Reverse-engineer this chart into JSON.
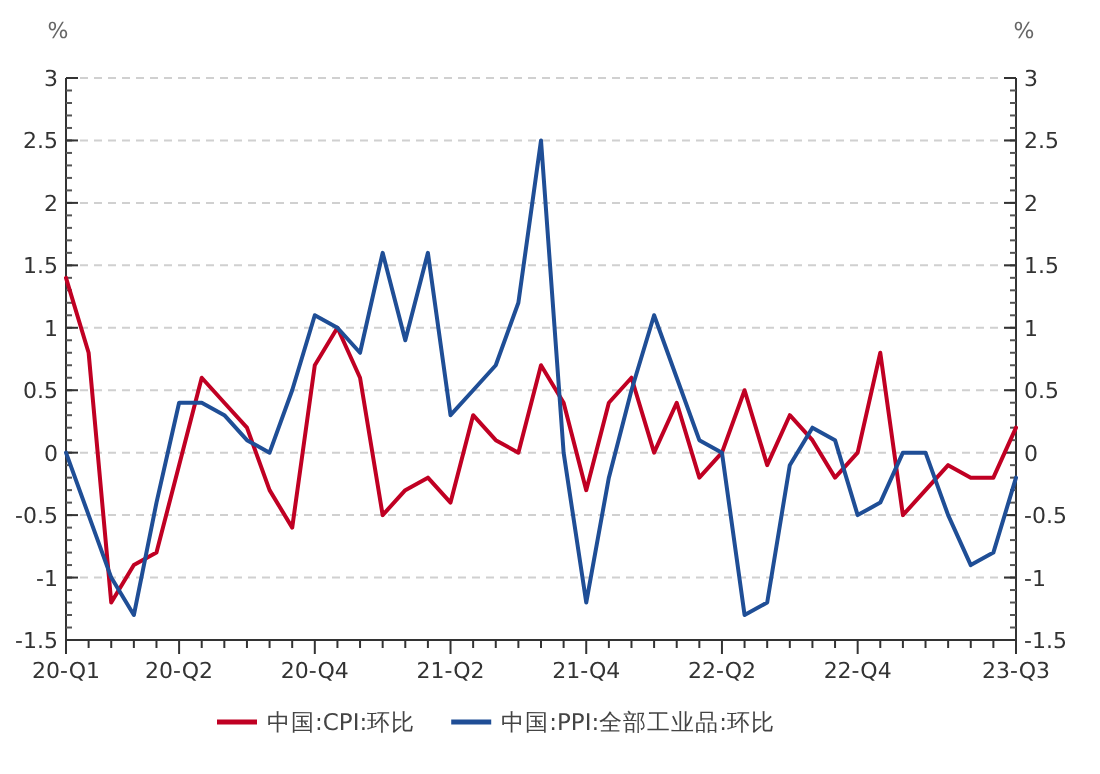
{
  "chart_data": {
    "type": "line",
    "ylabel": "%",
    "y2label": "%",
    "categories": [
      "20-Q1",
      null,
      null,
      null,
      null,
      "20-Q2",
      null,
      null,
      null,
      null,
      null,
      "20-Q4",
      null,
      null,
      null,
      null,
      null,
      "21-Q2",
      null,
      null,
      null,
      null,
      null,
      "21-Q4",
      null,
      null,
      null,
      null,
      null,
      "22-Q2",
      null,
      null,
      null,
      null,
      null,
      "22-Q4",
      null,
      null,
      null,
      null,
      null,
      null,
      "23-Q3"
    ],
    "series": [
      {
        "name": "中国:CPI:环比",
        "color": "#c00023",
        "values": [
          1.4,
          0.8,
          -1.2,
          -0.9,
          -0.8,
          -0.1,
          0.6,
          0.4,
          0.2,
          -0.3,
          -0.6,
          0.7,
          1.0,
          0.6,
          -0.5,
          -0.3,
          -0.2,
          -0.4,
          0.3,
          0.1,
          0.0,
          0.7,
          0.4,
          -0.3,
          0.4,
          0.6,
          0.0,
          0.4,
          -0.2,
          0.0,
          0.5,
          -0.1,
          0.3,
          0.1,
          -0.2,
          0.0,
          0.8,
          -0.5,
          -0.3,
          -0.1,
          -0.2,
          -0.2,
          0.2
        ]
      },
      {
        "name": "中国:PPI:全部工业品:环比",
        "color": "#1f4e96",
        "values": [
          0.0,
          -0.5,
          -1.0,
          -1.3,
          -0.4,
          0.4,
          0.4,
          0.3,
          0.1,
          0.0,
          0.5,
          1.1,
          1.0,
          0.8,
          1.6,
          0.9,
          1.6,
          0.3,
          0.5,
          0.7,
          1.2,
          2.5,
          0.0,
          -1.2,
          -0.2,
          0.5,
          1.1,
          0.6,
          0.1,
          0.0,
          -1.3,
          -1.2,
          -0.1,
          0.2,
          0.1,
          -0.5,
          -0.4,
          0.0,
          0.0,
          -0.5,
          -0.9,
          -0.8,
          -0.2
        ]
      }
    ],
    "ylim": [
      -1.5,
      3
    ],
    "yticks": [
      -1.5,
      -1,
      -0.5,
      0,
      0.5,
      1,
      1.5,
      2,
      2.5,
      3
    ],
    "y2lim": [
      -1.5,
      3
    ],
    "y2ticks": [
      -1.5,
      -1,
      -0.5,
      0,
      0.5,
      1,
      1.5,
      2,
      2.5,
      3
    ],
    "grid": "y",
    "legend": "bottom",
    "marker": "none",
    "line_style": "solid"
  }
}
